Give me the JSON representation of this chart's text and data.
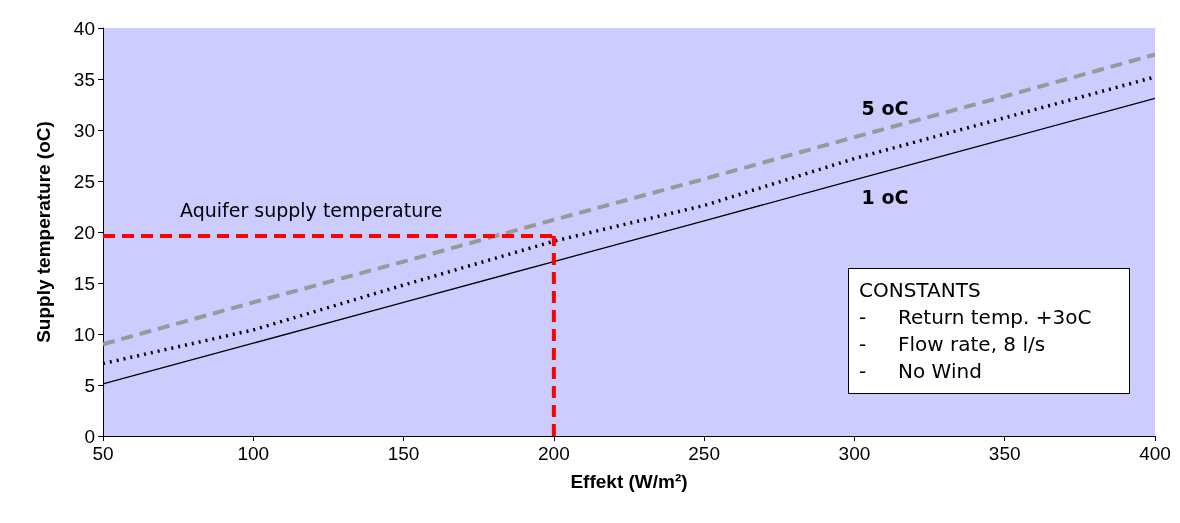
{
  "chart_data": {
    "type": "line",
    "xlabel": "Effekt (W/m²)",
    "ylabel": "Supply temperature (oC)",
    "xlim": [
      50,
      400
    ],
    "xticks": [
      50,
      100,
      150,
      200,
      250,
      300,
      350,
      400
    ],
    "ylim": [
      0,
      40
    ],
    "yticks": [
      0,
      5,
      10,
      15,
      20,
      25,
      30,
      35,
      40
    ],
    "grid": false,
    "marker": "none",
    "series": [
      {
        "color": "#999999",
        "line_style": "dashed",
        "x": [
          50,
          100,
          150,
          200,
          250,
          300,
          350,
          400
        ],
        "values": [
          9,
          13.1,
          17.1,
          21.2,
          25.2,
          29.3,
          33.3,
          37.4
        ]
      },
      {
        "color": "#000000",
        "line_style": "dotted",
        "x": [
          50,
          100,
          150,
          200,
          250,
          300,
          350,
          400
        ],
        "values": [
          7.1,
          10.4,
          14.8,
          19.1,
          22.6,
          27.2,
          31.2,
          35.2
        ]
      },
      {
        "color": "#000000",
        "line_style": "solid",
        "x": [
          50,
          100,
          150,
          200,
          250,
          300,
          350,
          400
        ],
        "values": [
          5.1,
          9.1,
          13.1,
          17.1,
          21.1,
          25.1,
          29.1,
          33.1
        ]
      },
      {
        "color": "#ff0000",
        "line_style": "dashed",
        "x": [
          50,
          200
        ],
        "values": [
          19.6,
          19.6
        ]
      },
      {
        "color": "#ff0000",
        "line_style": "dashed",
        "x": [
          200,
          200
        ],
        "values": [
          0,
          19.6
        ]
      }
    ],
    "annotations": [
      "Aquifer supply temperature",
      "5 oC",
      "1 oC",
      "CONSTANTS",
      "-     Return temp. +3oC",
      "-     Flow rate, 8 l/s",
      "-     No Wind"
    ]
  }
}
